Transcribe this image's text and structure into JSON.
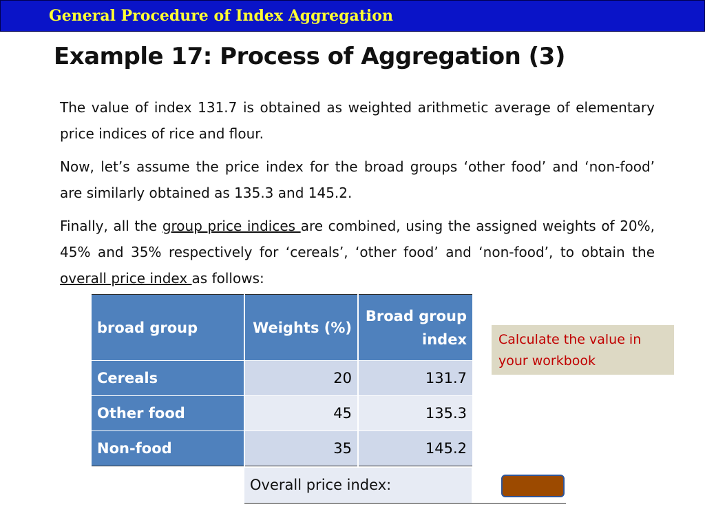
{
  "banner": {
    "title": "General Procedure of Index Aggregation"
  },
  "slide": {
    "title": "Example 17: Process of Aggregation (3)"
  },
  "paragraphs": {
    "p1": "The value of index 131.7 is obtained as weighted arithmetic average of elementary price indices of rice and flour.",
    "p2": "Now, let’s assume the price index for the broad groups ‘other food’ and ‘non-food’ are similarly obtained as 135.3 and 145.2.",
    "p3_a": "Finally, all the ",
    "p3_u1": "group price indices ",
    "p3_b": "are combined, using the assigned weights of 20%, 45% and 35% respectively for ‘cereals’, ‘other food’ and ‘non-food’, to obtain the ",
    "p3_u2": "overall price index ",
    "p3_c": "as follows:"
  },
  "table": {
    "headers": {
      "group": "broad group",
      "weights": "Weights (%)",
      "index": "Broad group index"
    },
    "rows": [
      {
        "group": "Cereals",
        "weight": "20",
        "index": "131.7"
      },
      {
        "group": "Other food",
        "weight": "45",
        "index": "135.3"
      },
      {
        "group": "Non-food",
        "weight": "35",
        "index": "145.2"
      }
    ],
    "overall_label": "Overall price index:"
  },
  "callout": {
    "text": "Calculate the value in your workbook"
  },
  "colors": {
    "banner_bg": "#0a14c8",
    "banner_text": "#ffff33",
    "header_fill": "#4f81bd",
    "answer_box": "#9c4a00",
    "callout_bg": "#ddd9c4",
    "callout_text": "#c00000"
  }
}
